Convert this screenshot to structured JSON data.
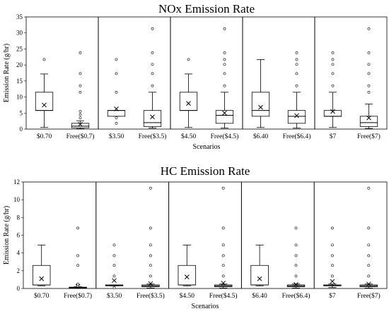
{
  "chart_data": [
    {
      "type": "box",
      "title": "NOx Emission Rate",
      "xlabel": "Scenarios",
      "ylabel": "Emission Rate (g/hr)",
      "ylim": [
        0,
        35
      ],
      "yticks": [
        0,
        5,
        10,
        15,
        20,
        25,
        30,
        35
      ],
      "grid": false,
      "groups": [
        [
          "$0.70",
          "Free($0.7)"
        ],
        [
          "$3.50",
          "Free($3.5)"
        ],
        [
          "$4.50",
          "Free($4.5)"
        ],
        [
          "$6.40",
          "Free($6.4)"
        ],
        [
          "$7",
          "Free($7)"
        ]
      ],
      "boxes": [
        {
          "category": "$0.70",
          "min": 0.5,
          "q1": 5.8,
          "median": 5.8,
          "q3": 11.5,
          "max": 17.2,
          "mean": 7.5,
          "outliers": [
            21.7
          ]
        },
        {
          "category": "Free($0.7)",
          "min": 0.1,
          "q1": 0.4,
          "median": 0.9,
          "q3": 1.8,
          "max": 2.6,
          "mean": 1.5,
          "outliers": [
            3.5,
            4.5,
            5.5,
            11.5,
            13.5,
            17.3,
            23.8
          ]
        },
        {
          "category": "$3.50",
          "min": 4.0,
          "q1": 4.0,
          "median": 5.8,
          "q3": 5.8,
          "max": 5.8,
          "mean": 6.3,
          "outliers": [
            1.8,
            3.5,
            11.5,
            17.3,
            21.7
          ]
        },
        {
          "category": "Free($3.5)",
          "min": 0.3,
          "q1": 0.8,
          "median": 2.0,
          "q3": 5.8,
          "max": 11.5,
          "mean": 3.8,
          "outliers": [
            13.5,
            17.3,
            20.2,
            23.8,
            31.3
          ]
        },
        {
          "category": "$4.50",
          "min": 0.5,
          "q1": 5.8,
          "median": 5.8,
          "q3": 11.5,
          "max": 17.2,
          "mean": 8.0,
          "outliers": [
            21.7
          ]
        },
        {
          "category": "Free($4.5)",
          "min": 0.3,
          "q1": 1.8,
          "median": 4.3,
          "q3": 5.8,
          "max": 11.5,
          "mean": 5.0,
          "outliers": [
            13.5,
            17.3,
            20.2,
            21.7,
            23.8,
            31.3
          ]
        },
        {
          "category": "$6.40",
          "min": 0.5,
          "q1": 4.0,
          "median": 5.8,
          "q3": 11.5,
          "max": 21.7,
          "mean": 6.8,
          "outliers": []
        },
        {
          "category": "Free($6.4)",
          "min": 0.3,
          "q1": 1.8,
          "median": 4.0,
          "q3": 5.8,
          "max": 11.5,
          "mean": 4.2,
          "outliers": [
            13.5,
            17.3,
            20.2,
            21.7,
            23.8
          ]
        },
        {
          "category": "$7",
          "min": 0.5,
          "q1": 4.0,
          "median": 4.0,
          "q3": 5.8,
          "max": 11.5,
          "mean": 5.5,
          "outliers": [
            13.5,
            17.3,
            20.2,
            21.7,
            23.8
          ]
        },
        {
          "category": "Free($7)",
          "min": 0.2,
          "q1": 0.8,
          "median": 2.0,
          "q3": 4.0,
          "max": 7.8,
          "mean": 3.5,
          "outliers": [
            11.5,
            13.5,
            17.3,
            20.2,
            23.8,
            31.3
          ]
        }
      ]
    },
    {
      "type": "box",
      "title": "HC Emission Rate",
      "xlabel": "Scenarios",
      "ylabel": "Emission Rate (g/hr)",
      "ylim": [
        0,
        12
      ],
      "yticks": [
        0,
        2,
        4,
        6,
        8,
        10,
        12
      ],
      "grid": false,
      "groups": [
        [
          "$0.70",
          "Free($0.7)"
        ],
        [
          "$3.50",
          "Free($3.5)"
        ],
        [
          "$4.50",
          "Free($4.5)"
        ],
        [
          "$6.40",
          "Free($6.4)"
        ],
        [
          "$7",
          "Free($7)"
        ]
      ],
      "boxes": [
        {
          "category": "$0.70",
          "min": 0.3,
          "q1": 0.4,
          "median": 0.4,
          "q3": 2.6,
          "max": 4.9,
          "mean": 1.1,
          "outliers": []
        },
        {
          "category": "Free($0.7)",
          "min": 0.02,
          "q1": 0.05,
          "median": 0.1,
          "q3": 0.15,
          "max": 0.2,
          "mean": 0.25,
          "outliers": [
            0.3,
            0.5,
            2.6,
            3.7,
            6.8
          ]
        },
        {
          "category": "$3.50",
          "min": 0.3,
          "q1": 0.3,
          "median": 0.35,
          "q3": 0.4,
          "max": 0.4,
          "mean": 0.9,
          "outliers": [
            0.1,
            1.4,
            2.6,
            3.7,
            4.9
          ]
        },
        {
          "category": "Free($3.5)",
          "min": 0.05,
          "q1": 0.2,
          "median": 0.3,
          "q3": 0.4,
          "max": 0.5,
          "mean": 0.55,
          "outliers": [
            1.4,
            2.6,
            3.7,
            4.9,
            6.8,
            11.3
          ]
        },
        {
          "category": "$4.50",
          "min": 0.3,
          "q1": 0.4,
          "median": 0.4,
          "q3": 2.6,
          "max": 4.9,
          "mean": 1.3,
          "outliers": []
        },
        {
          "category": "Free($4.5)",
          "min": 0.05,
          "q1": 0.2,
          "median": 0.3,
          "q3": 0.4,
          "max": 0.5,
          "mean": 0.6,
          "outliers": [
            1.4,
            2.6,
            3.7,
            4.9,
            6.8,
            11.3
          ]
        },
        {
          "category": "$6.40",
          "min": 0.3,
          "q1": 0.4,
          "median": 0.4,
          "q3": 2.6,
          "max": 4.9,
          "mean": 1.1,
          "outliers": []
        },
        {
          "category": "Free($6.4)",
          "min": 0.05,
          "q1": 0.2,
          "median": 0.3,
          "q3": 0.4,
          "max": 0.5,
          "mean": 0.45,
          "outliers": [
            1.4,
            2.6,
            3.7,
            4.9,
            6.8
          ]
        },
        {
          "category": "$7",
          "min": 0.1,
          "q1": 0.3,
          "median": 0.35,
          "q3": 0.4,
          "max": 0.5,
          "mean": 0.8,
          "outliers": [
            1.4,
            2.6,
            3.7,
            4.9,
            6.8
          ]
        },
        {
          "category": "Free($7)",
          "min": 0.05,
          "q1": 0.2,
          "median": 0.3,
          "q3": 0.4,
          "max": 0.5,
          "mean": 0.5,
          "outliers": [
            1.4,
            2.6,
            3.7,
            4.9,
            6.8,
            11.3
          ]
        }
      ]
    }
  ]
}
